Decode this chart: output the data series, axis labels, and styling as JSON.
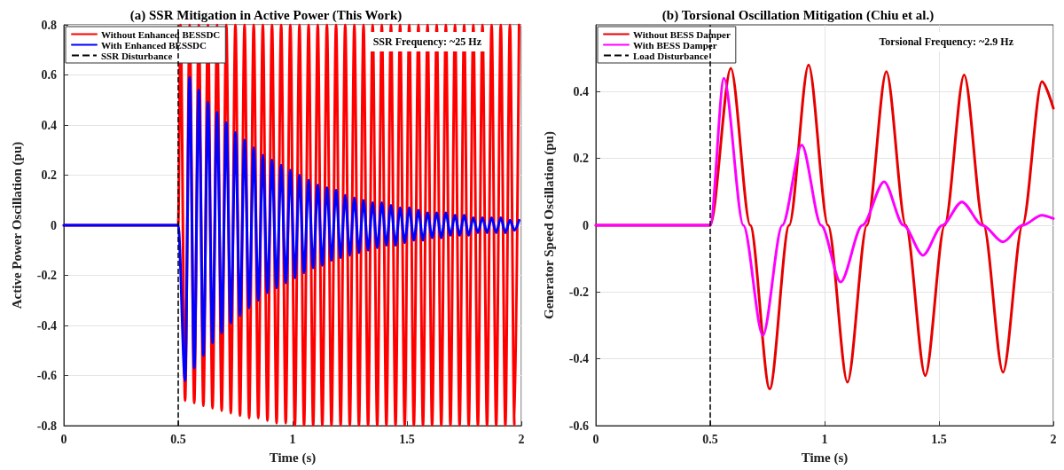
{
  "chart_data": [
    {
      "type": "line",
      "title": "(a) SSR Mitigation in Active Power (This Work)",
      "xlabel": "Time (s)",
      "ylabel": "Active Power Oscillation (pu)",
      "x": [
        0,
        0.5,
        0.51,
        0.53,
        0.55,
        0.57,
        0.59,
        0.61,
        0.63,
        0.65,
        0.67,
        0.69,
        0.71,
        0.73,
        0.75,
        0.77,
        0.79,
        0.81,
        0.83,
        0.85,
        0.87,
        0.89,
        0.91,
        0.93,
        0.95,
        0.97,
        0.99,
        1.01,
        1.03,
        1.05,
        1.07,
        1.09,
        1.11,
        1.13,
        1.15,
        1.17,
        1.19,
        1.21,
        1.23,
        1.25,
        1.27,
        1.29,
        1.31,
        1.33,
        1.35,
        1.37,
        1.39,
        1.41,
        1.43,
        1.45,
        1.47,
        1.49,
        1.51,
        1.53,
        1.55,
        1.57,
        1.59,
        1.61,
        1.63,
        1.65,
        1.67,
        1.69,
        1.71,
        1.73,
        1.75,
        1.77,
        1.79,
        1.81,
        1.83,
        1.85,
        1.87,
        1.89,
        1.91,
        1.93,
        1.95,
        1.97,
        1.99
      ],
      "series": [
        {
          "name": "Without Enhanced BESSDC",
          "color": "#ff0000",
          "values": [
            0,
            0,
            0.8,
            -0.7,
            0.8,
            -0.71,
            0.8,
            -0.72,
            0.8,
            -0.73,
            0.8,
            -0.74,
            0.8,
            -0.75,
            0.8,
            -0.76,
            0.8,
            -0.77,
            0.8,
            -0.77,
            0.8,
            -0.78,
            0.8,
            -0.79,
            0.8,
            -0.79,
            0.8,
            -0.8,
            0.8,
            -0.8,
            0.8,
            -0.8,
            0.8,
            -0.8,
            0.8,
            -0.8,
            0.8,
            -0.8,
            0.8,
            -0.8,
            0.8,
            -0.8,
            0.8,
            -0.8,
            0.8,
            -0.8,
            0.8,
            -0.8,
            0.8,
            -0.8,
            0.8,
            -0.8,
            0.8,
            -0.8,
            0.8,
            -0.8,
            0.8,
            -0.8,
            0.8,
            -0.8,
            0.8,
            -0.8,
            0.8,
            -0.8,
            0.8,
            -0.8,
            0.8,
            -0.8,
            0.8,
            -0.8,
            0.8,
            -0.8,
            0.8,
            -0.8,
            0.8,
            -0.8,
            0.8
          ]
        },
        {
          "name": "With Enhanced BESSDC",
          "color": "#0000ff",
          "values": [
            0,
            0,
            null,
            -0.62,
            0.59,
            -0.57,
            0.54,
            -0.52,
            0.49,
            -0.47,
            0.45,
            -0.43,
            0.41,
            -0.39,
            0.37,
            -0.36,
            0.34,
            -0.33,
            0.31,
            -0.3,
            0.28,
            -0.27,
            0.26,
            -0.25,
            0.24,
            -0.23,
            0.22,
            -0.21,
            0.2,
            -0.19,
            0.18,
            -0.17,
            0.16,
            -0.16,
            0.15,
            -0.14,
            0.14,
            -0.13,
            0.12,
            -0.12,
            0.11,
            -0.11,
            0.1,
            -0.1,
            0.09,
            -0.09,
            0.09,
            -0.08,
            0.08,
            -0.08,
            0.07,
            -0.07,
            0.07,
            -0.06,
            0.06,
            -0.06,
            0.05,
            -0.05,
            0.05,
            -0.05,
            0.05,
            -0.04,
            0.04,
            -0.04,
            0.04,
            -0.04,
            0.03,
            -0.03,
            0.03,
            -0.03,
            0.03,
            -0.03,
            0.03,
            -0.03,
            0.02,
            -0.02,
            0.02
          ]
        }
      ],
      "ref_lines": [
        {
          "axis": "x",
          "value": 0.5,
          "label": "SSR Disturbance",
          "color": "#000000",
          "line_style": "dashed"
        }
      ],
      "annotations": [
        "SSR Frequency: ~25 Hz"
      ],
      "xlim": [
        0,
        2
      ],
      "xticks": [
        0,
        0.5,
        1,
        1.5,
        2
      ],
      "ylim": [
        -0.8,
        0.8
      ],
      "yticks": [
        -0.8,
        -0.6,
        -0.4,
        -0.2,
        0,
        0.2,
        0.4,
        0.6,
        0.8
      ],
      "grid": true,
      "legend": "top left",
      "marker": "none",
      "line_style": "solid"
    },
    {
      "type": "line",
      "title": "(b) Torsional Oscillation Mitigation (Chiu et al.)",
      "xlabel": "Time (s)",
      "ylabel": "Generator Speed Oscillation (pu)",
      "series": [
        {
          "name": "Without BESS Damper",
          "color": "#e60000",
          "x": [
            0,
            0.5,
            0.59,
            0.675,
            0.76,
            0.845,
            0.93,
            1.015,
            1.1,
            1.185,
            1.27,
            1.355,
            1.44,
            1.525,
            1.61,
            1.695,
            1.78,
            1.865,
            1.95,
            2
          ],
          "values": [
            0,
            0,
            0.47,
            0,
            -0.49,
            0,
            0.48,
            0,
            -0.47,
            0,
            0.46,
            0,
            -0.45,
            0,
            0.45,
            0,
            -0.44,
            0,
            0.43,
            0.35
          ]
        },
        {
          "name": "With BESS Damper",
          "color": "#ff00ff",
          "x": [
            0,
            0.5,
            0.56,
            0.645,
            0.73,
            0.815,
            0.9,
            0.985,
            1.07,
            1.165,
            1.26,
            1.345,
            1.43,
            1.515,
            1.6,
            1.69,
            1.78,
            1.865,
            1.95,
            2
          ],
          "values": [
            0,
            0,
            0.44,
            0,
            -0.33,
            0,
            0.24,
            0,
            -0.17,
            0,
            0.13,
            0,
            -0.09,
            0,
            0.07,
            0,
            -0.05,
            0,
            0.03,
            0.02
          ]
        }
      ],
      "ref_lines": [
        {
          "axis": "x",
          "value": 0.5,
          "label": "Load Disturbance",
          "color": "#000000",
          "line_style": "dashed"
        }
      ],
      "annotations": [
        "Torsional Frequency: ~2.9 Hz"
      ],
      "xlim": [
        0,
        2
      ],
      "xticks": [
        0,
        0.5,
        1,
        1.5,
        2
      ],
      "ylim": [
        -0.6,
        0.6
      ],
      "yticks": [
        -0.6,
        -0.4,
        -0.2,
        0,
        0.2,
        0.4
      ],
      "grid": true,
      "legend": "top left",
      "marker": "none",
      "line_style": "solid"
    }
  ]
}
